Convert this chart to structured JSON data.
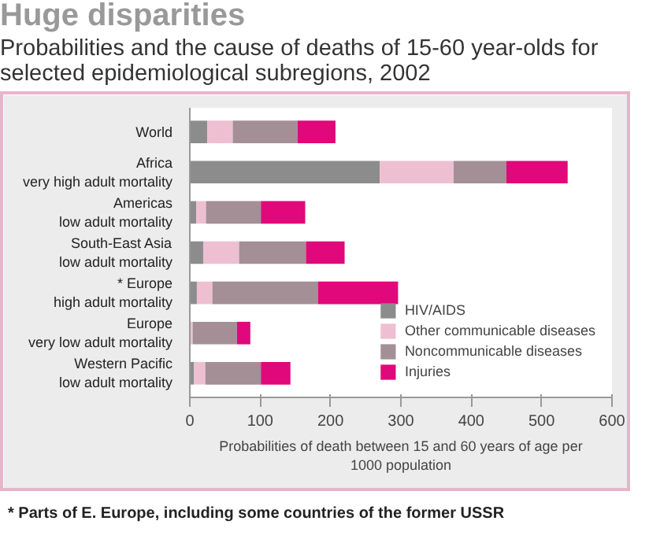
{
  "chart_data": {
    "type": "bar",
    "orientation": "horizontal",
    "stacked": true,
    "title": "Huge disparities",
    "subtitle": "Probabilities and the cause of deaths of 15-60 year-olds for selected epidemiological subregions, 2002",
    "xlabel": "Probabilities of death between 15 and 60 years of age per\n1000 population",
    "categories": [
      "World",
      "Africa\nvery high adult mortality",
      "Americas\nlow adult mortality",
      "South-East Asia\nlow adult mortality",
      "* Europe\nhigh adult mortality",
      "Europe\nvery low adult mortality",
      "Western Pacific\nlow adult mortality"
    ],
    "series": [
      {
        "name": "HIV/AIDS",
        "color": "#8c8c8c",
        "values": [
          25,
          270,
          9,
          19,
          10,
          null,
          6
        ]
      },
      {
        "name": "Other communicable diseases",
        "color": "#eebfd0",
        "values": [
          36,
          105,
          14,
          51,
          22,
          4,
          16
        ]
      },
      {
        "name": "Noncommunicable diseases",
        "color": "#a48f96",
        "values": [
          92,
          75,
          78,
          95,
          150,
          63,
          79
        ]
      },
      {
        "name": "Injuries",
        "color": "#e0087a",
        "values": [
          54,
          87,
          63,
          55,
          114,
          19,
          42
        ]
      }
    ],
    "xlim": [
      0,
      600
    ],
    "xticks": [
      0,
      100,
      200,
      300,
      400,
      500,
      600
    ],
    "grid": false,
    "legend": "bottom right",
    "annotations": [
      "* Parts of E. Europe, including some countries of the former USSR"
    ]
  }
}
